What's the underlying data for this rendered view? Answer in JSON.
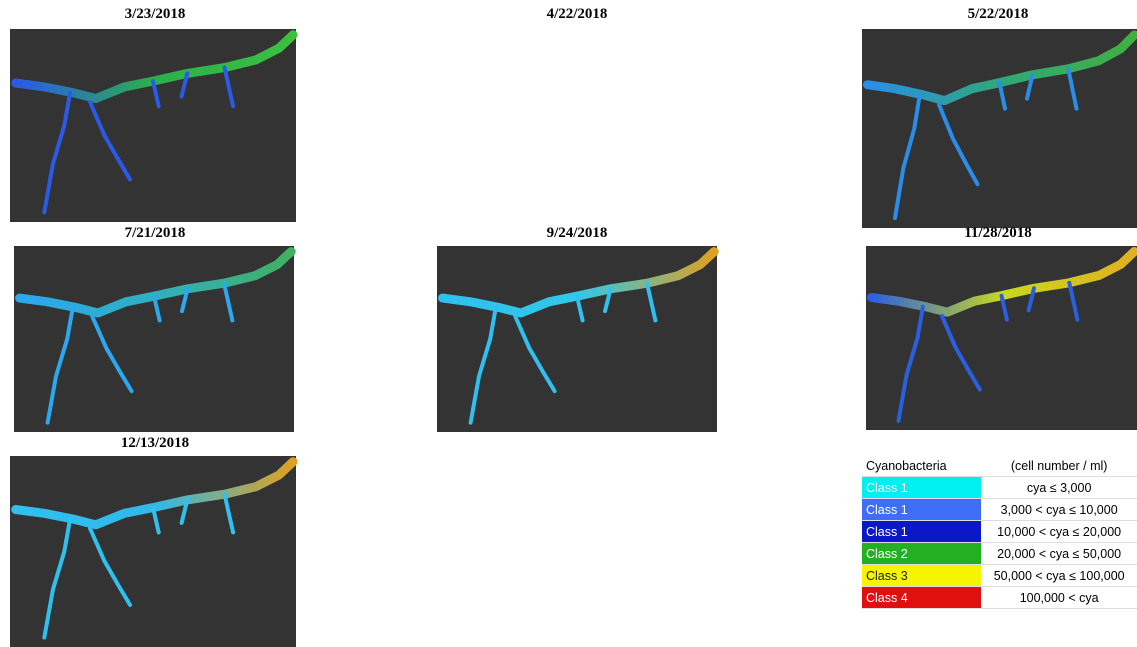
{
  "panels": [
    {
      "date": "3/23/2018"
    },
    {
      "date": "4/22/2018"
    },
    {
      "date": "5/22/2018"
    },
    {
      "date": "7/21/2018"
    },
    {
      "date": "9/24/2018"
    },
    {
      "date": "11/28/2018"
    },
    {
      "date": "12/13/2018"
    }
  ],
  "legend": {
    "header": [
      "Cyanobacteria",
      "(cell number / ml)"
    ],
    "rows": [
      {
        "class": "Class 1",
        "range": "cya ≤ 3,000",
        "color": "#00f0f0"
      },
      {
        "class": "Class 1",
        "range": "3,000 < cya ≤ 10,000",
        "color": "#3d6ef5"
      },
      {
        "class": "Class 1",
        "range": "10,000 < cya ≤ 20,000",
        "color": "#0a18c8"
      },
      {
        "class": "Class 2",
        "range": "20,000 < cya ≤ 50,000",
        "color": "#22b022"
      },
      {
        "class": "Class 3",
        "range": "50,000 < cya ≤ 100,000",
        "color": "#f5f500"
      },
      {
        "class": "Class 4",
        "range": "100,000 < cya",
        "color": "#e01010"
      }
    ]
  }
}
